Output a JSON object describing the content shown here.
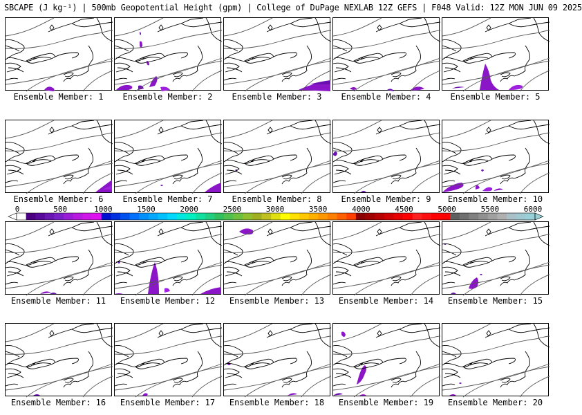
{
  "title": "SBCAPE (J kg⁻¹) | 500mb Geopotential Height (gpm) | College of DuPage NEXLAB 12Z GEFS | F048 Valid: 12Z MON JUN 09 2025",
  "panel_label_prefix": "Ensemble Member: ",
  "members": [
    {
      "label": "Ensemble Member: 1"
    },
    {
      "label": "Ensemble Member: 2"
    },
    {
      "label": "Ensemble Member: 3"
    },
    {
      "label": "Ensemble Member: 4"
    },
    {
      "label": "Ensemble Member: 5"
    },
    {
      "label": "Ensemble Member: 6"
    },
    {
      "label": "Ensemble Member: 7"
    },
    {
      "label": "Ensemble Member: 8"
    },
    {
      "label": "Ensemble Member: 9"
    },
    {
      "label": "Ensemble Member: 10"
    },
    {
      "label": "Ensemble Member: 11"
    },
    {
      "label": "Ensemble Member: 12"
    },
    {
      "label": "Ensemble Member: 13"
    },
    {
      "label": "Ensemble Member: 14"
    },
    {
      "label": "Ensemble Member: 15"
    },
    {
      "label": "Ensemble Member: 16"
    },
    {
      "label": "Ensemble Member: 17"
    },
    {
      "label": "Ensemble Member: 18"
    },
    {
      "label": "Ensemble Member: 19"
    },
    {
      "label": "Ensemble Member: 20"
    }
  ],
  "colorbar": {
    "ticks": [
      "0",
      "500",
      "1000",
      "1500",
      "2000",
      "2500",
      "3000",
      "3500",
      "4000",
      "4500",
      "5000",
      "5500",
      "6000"
    ],
    "colors": [
      "#ffffff",
      "#4b0082",
      "#5a0a9a",
      "#6a16b2",
      "#7a22c8",
      "#9a1ed8",
      "#b81ae0",
      "#d016e8",
      "#e010f0",
      "#0010d0",
      "#0030e0",
      "#0050f0",
      "#0070ff",
      "#0090ff",
      "#00a8ff",
      "#00c0ff",
      "#00d8ff",
      "#00e8e0",
      "#00f0c0",
      "#10e0a0",
      "#20d080",
      "#30c060",
      "#50c050",
      "#70c040",
      "#90c030",
      "#a0b020",
      "#c0c020",
      "#e0e010",
      "#ffff00",
      "#ffe000",
      "#ffc800",
      "#ffb000",
      "#ff9800",
      "#ff8000",
      "#ff6000",
      "#ff4000",
      "#8b0000",
      "#a00000",
      "#b80000",
      "#d00000",
      "#e80000",
      "#ff0000",
      "#ff2020",
      "#ff1010",
      "#ff0000",
      "#ff0000",
      "#606060",
      "#707070",
      "#808080",
      "#909090",
      "#a0a0a0",
      "#b0b0b0",
      "#a8c0c8",
      "#a0c8d0",
      "#98d0d8"
    ]
  }
}
